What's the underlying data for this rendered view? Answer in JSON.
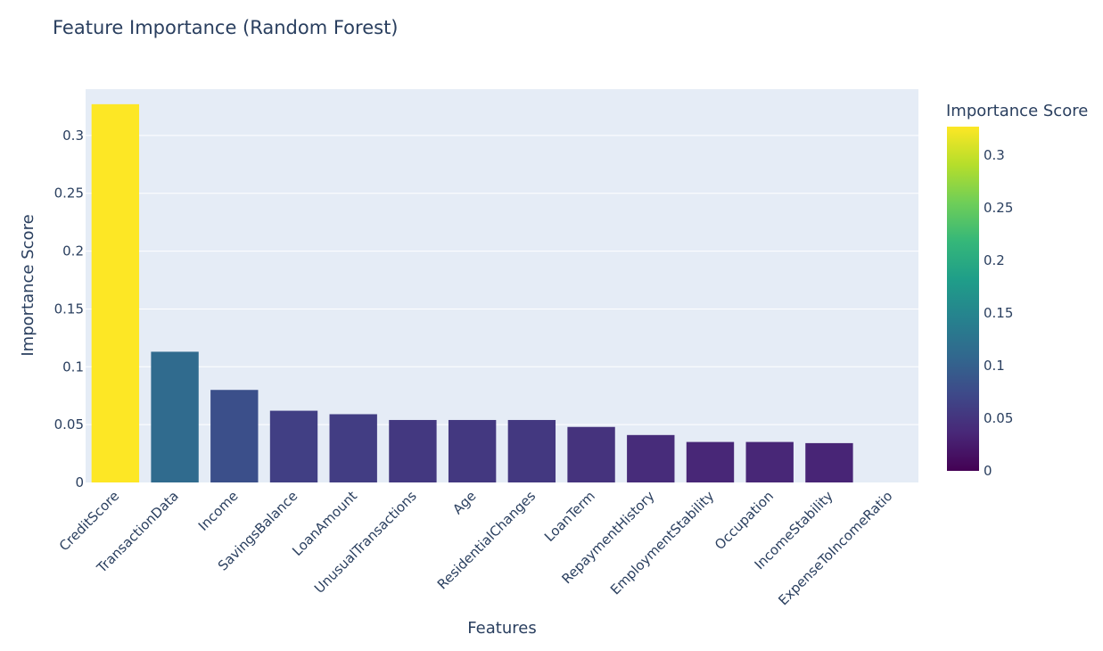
{
  "chart_data": {
    "type": "bar",
    "title": "Feature Importance (Random Forest)",
    "xlabel": "Features",
    "ylabel": "Importance Score",
    "categories": [
      "CreditScore",
      "TransactionData",
      "Income",
      "SavingsBalance",
      "LoanAmount",
      "UnusualTransactions",
      "Age",
      "ResidentialChanges",
      "LoanTerm",
      "RepaymentHistory",
      "EmploymentStability",
      "Occupation",
      "IncomeStability",
      "ExpenseToIncomeRatio"
    ],
    "values": [
      0.327,
      0.113,
      0.08,
      0.062,
      0.059,
      0.054,
      0.054,
      0.054,
      0.048,
      0.041,
      0.035,
      0.035,
      0.034,
      0.0
    ],
    "ylim": [
      0,
      0.34
    ],
    "yticks": [
      0,
      0.05,
      0.1,
      0.15,
      0.2,
      0.25,
      0.3
    ],
    "ytick_labels": [
      "0",
      "0.05",
      "0.1",
      "0.15",
      "0.2",
      "0.25",
      "0.3"
    ],
    "grid": true,
    "colorscale": "Viridis",
    "colorbar": {
      "title": "Importance Score",
      "range": [
        0,
        0.327
      ],
      "ticks": [
        0,
        0.05,
        0.1,
        0.15,
        0.2,
        0.25,
        0.3
      ],
      "tick_labels": [
        "0",
        "0.05",
        "0.1",
        "0.15",
        "0.2",
        "0.25",
        "0.3"
      ],
      "placement": "right"
    },
    "colors": {
      "plot_background": "#e5ecf6",
      "gridline": "#ffffff",
      "text": "#2a3f5f"
    }
  }
}
